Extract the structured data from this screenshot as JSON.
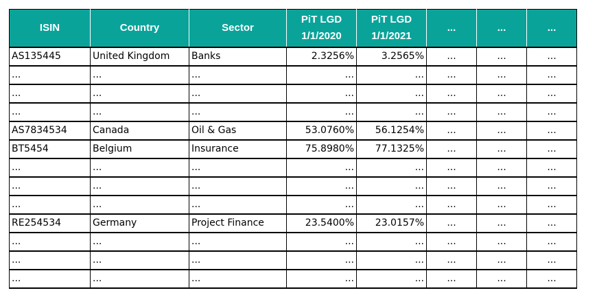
{
  "headers": {
    "isin": "ISIN",
    "country": "Country",
    "sector": "Sector",
    "lgd1_line1": "PiT LGD",
    "lgd1_line2": "1/1/2020",
    "lgd2_line1": "PiT LGD",
    "lgd2_line2": "1/1/2021",
    "extra1": "...",
    "extra2": "...",
    "extra3": "..."
  },
  "rows": [
    {
      "isin": "AS135445",
      "country": "United Kingdom",
      "sector": "Banks",
      "lgd2020": "2.3256%",
      "lgd2021": "3.2565%",
      "e1": "...",
      "e2": "...",
      "e3": "..."
    },
    {
      "isin": "...",
      "country": "...",
      "sector": "...",
      "lgd2020": "...",
      "lgd2021": "...",
      "e1": "...",
      "e2": "...",
      "e3": "..."
    },
    {
      "isin": "...",
      "country": "...",
      "sector": "...",
      "lgd2020": "...",
      "lgd2021": "...",
      "e1": "...",
      "e2": "...",
      "e3": "..."
    },
    {
      "isin": "...",
      "country": "...",
      "sector": "...",
      "lgd2020": "...",
      "lgd2021": "...",
      "e1": "...",
      "e2": "...",
      "e3": "..."
    },
    {
      "isin": "AS7834534",
      "country": "Canada",
      "sector": "Oil & Gas",
      "lgd2020": "53.0760%",
      "lgd2021": "56.1254%",
      "e1": "...",
      "e2": "...",
      "e3": "..."
    },
    {
      "isin": "BT5454",
      "country": "Belgium",
      "sector": "Insurance",
      "lgd2020": "75.8980%",
      "lgd2021": "77.1325%",
      "e1": "...",
      "e2": "...",
      "e3": "..."
    },
    {
      "isin": "...",
      "country": "...",
      "sector": "...",
      "lgd2020": "...",
      "lgd2021": "...",
      "e1": "...",
      "e2": "...",
      "e3": "..."
    },
    {
      "isin": "...",
      "country": "...",
      "sector": "...",
      "lgd2020": "...",
      "lgd2021": "...",
      "e1": "...",
      "e2": "...",
      "e3": "..."
    },
    {
      "isin": "...",
      "country": "...",
      "sector": "...",
      "lgd2020": "...",
      "lgd2021": "...",
      "e1": "...",
      "e2": "...",
      "e3": "..."
    },
    {
      "isin": "RE254534",
      "country": "Germany",
      "sector": "Project Finance",
      "lgd2020": "23.5400%",
      "lgd2021": "23.0157%",
      "e1": "...",
      "e2": "...",
      "e3": "..."
    },
    {
      "isin": "...",
      "country": "...",
      "sector": "...",
      "lgd2020": "...",
      "lgd2021": "...",
      "e1": "...",
      "e2": "...",
      "e3": "..."
    },
    {
      "isin": "...",
      "country": "...",
      "sector": "...",
      "lgd2020": "...",
      "lgd2021": "...",
      "e1": "...",
      "e2": "...",
      "e3": "..."
    },
    {
      "isin": "...",
      "country": "...",
      "sector": "...",
      "lgd2020": "...",
      "lgd2021": "...",
      "e1": "...",
      "e2": "...",
      "e3": "..."
    }
  ],
  "colors": {
    "header_bg": "#0aa39a",
    "header_text": "#ffffff"
  }
}
